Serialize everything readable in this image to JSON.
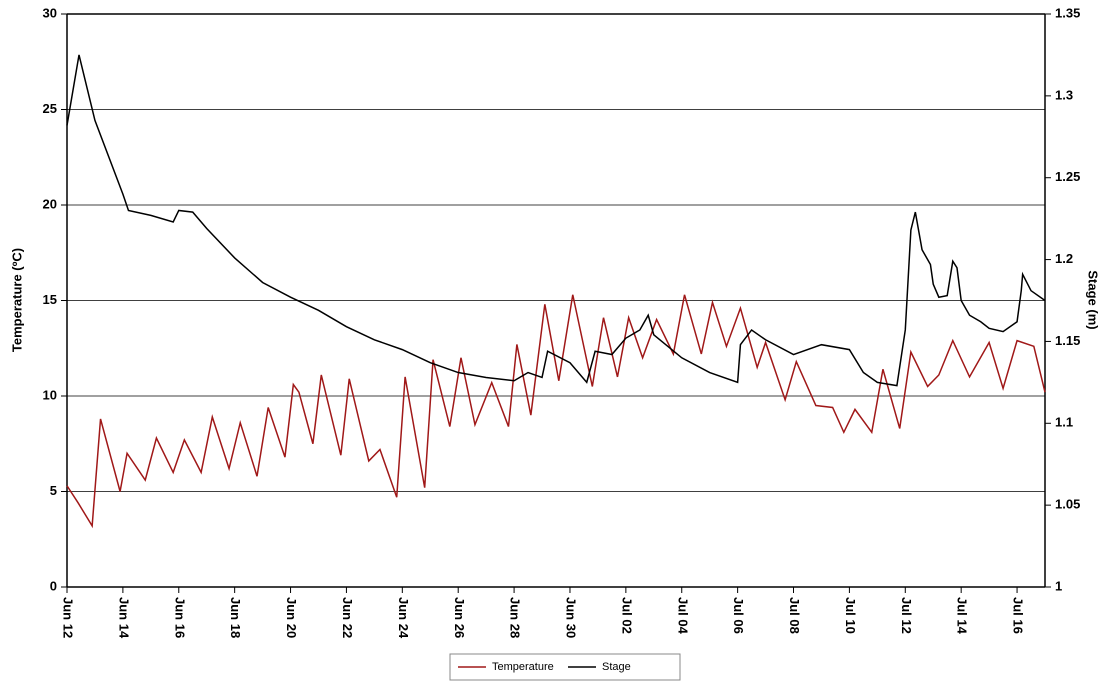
{
  "chart_data": {
    "type": "line",
    "y_label": "Temperature (ºC)",
    "y2_label": "Stage (m)",
    "xlim": [
      0,
      35
    ],
    "xticks": [
      {
        "value": 0,
        "label": "Jun 12"
      },
      {
        "value": 2,
        "label": "Jun 14"
      },
      {
        "value": 4,
        "label": "Jun 16"
      },
      {
        "value": 6,
        "label": "Jun 18"
      },
      {
        "value": 8,
        "label": "Jun 20"
      },
      {
        "value": 10,
        "label": "Jun 22"
      },
      {
        "value": 12,
        "label": "Jun 24"
      },
      {
        "value": 14,
        "label": "Jun 26"
      },
      {
        "value": 16,
        "label": "Jun 28"
      },
      {
        "value": 18,
        "label": "Jun 30"
      },
      {
        "value": 20,
        "label": "Jul 02"
      },
      {
        "value": 22,
        "label": "Jul 04"
      },
      {
        "value": 24,
        "label": "Jul 06"
      },
      {
        "value": 26,
        "label": "Jul 08"
      },
      {
        "value": 28,
        "label": "Jul 10"
      },
      {
        "value": 30,
        "label": "Jul 12"
      },
      {
        "value": 32,
        "label": "Jul 14"
      },
      {
        "value": 34,
        "label": "Jul 16"
      }
    ],
    "ylim": [
      0,
      30
    ],
    "yticks": [
      0,
      5,
      10,
      15,
      20,
      25,
      30
    ],
    "y2lim": [
      1,
      1.35
    ],
    "y2ticks": [
      1,
      1.05,
      1.1,
      1.15,
      1.2,
      1.25,
      1.3,
      1.35
    ],
    "grid": true,
    "legend": "bottom",
    "series": [
      {
        "name": "Temperature",
        "color": "#a01818",
        "x": [
          0,
          0.4,
          0.9,
          1.2,
          1.9,
          2.15,
          2.8,
          3.2,
          3.8,
          4.2,
          4.8,
          5.2,
          5.8,
          6.2,
          6.8,
          7.2,
          7.8,
          8.1,
          8.3,
          8.8,
          9.1,
          9.8,
          10.1,
          10.8,
          11.2,
          11.8,
          12.1,
          12.8,
          13.1,
          13.7,
          14.1,
          14.6,
          15.2,
          15.8,
          16.1,
          16.6,
          17.1,
          17.6,
          18.1,
          18.8,
          19.2,
          19.7,
          20.1,
          20.6,
          21.1,
          21.7,
          22.1,
          22.7,
          23.1,
          23.6,
          24.1,
          24.7,
          25.0,
          25.7,
          26.1,
          26.8,
          27.4,
          27.8,
          28.2,
          28.8,
          29.2,
          29.8,
          30.2,
          30.8,
          31.2,
          31.7,
          32.3,
          33.0,
          33.5,
          34.0,
          34.6,
          35.0
        ],
        "values": [
          5.3,
          4.4,
          3.2,
          8.8,
          5.0,
          7.0,
          5.6,
          7.8,
          6.0,
          7.7,
          6.0,
          8.9,
          6.2,
          8.6,
          5.8,
          9.4,
          6.8,
          10.6,
          10.2,
          7.5,
          11.1,
          6.9,
          10.9,
          6.6,
          7.2,
          4.7,
          11.0,
          5.2,
          11.9,
          8.4,
          12.0,
          8.5,
          10.7,
          8.4,
          12.7,
          9.0,
          14.8,
          10.8,
          15.3,
          10.5,
          14.1,
          11.0,
          14.1,
          12.0,
          14.0,
          12.2,
          15.3,
          12.2,
          14.9,
          12.6,
          14.6,
          11.5,
          12.8,
          9.8,
          11.8,
          9.5,
          9.4,
          8.1,
          9.3,
          8.1,
          11.4,
          8.3,
          12.3,
          10.5,
          11.1,
          12.9,
          11.0,
          12.8,
          10.4,
          12.9,
          12.6,
          10.2
        ]
      },
      {
        "name": "Stage",
        "color": "#000000",
        "axis": "y2",
        "x": [
          0,
          0.43,
          1,
          2,
          2.2,
          3,
          3.8,
          4,
          4.5,
          5,
          6,
          7,
          8,
          9,
          10,
          11,
          12,
          13,
          14,
          15,
          16,
          16.5,
          17,
          17.2,
          18,
          18.6,
          18.9,
          19.5,
          20,
          20.5,
          20.8,
          21,
          22,
          23,
          24,
          24.1,
          24.5,
          25,
          26,
          27,
          28,
          28.5,
          29,
          29.7,
          30.0,
          30.2,
          30.36,
          30.6,
          30.9,
          31.0,
          31.2,
          31.5,
          31.7,
          31.85,
          32.0,
          32.3,
          32.7,
          33.0,
          33.5,
          34.0,
          34.15,
          34.2,
          34.5,
          35
        ],
        "values": [
          1.282,
          1.325,
          1.285,
          1.24,
          1.23,
          1.227,
          1.223,
          1.23,
          1.229,
          1.219,
          1.201,
          1.186,
          1.177,
          1.169,
          1.159,
          1.151,
          1.145,
          1.137,
          1.131,
          1.128,
          1.126,
          1.131,
          1.128,
          1.144,
          1.137,
          1.125,
          1.144,
          1.142,
          1.152,
          1.157,
          1.166,
          1.154,
          1.14,
          1.131,
          1.125,
          1.148,
          1.157,
          1.151,
          1.142,
          1.148,
          1.145,
          1.131,
          1.125,
          1.123,
          1.157,
          1.218,
          1.229,
          1.206,
          1.197,
          1.185,
          1.177,
          1.178,
          1.199,
          1.195,
          1.175,
          1.166,
          1.162,
          1.158,
          1.156,
          1.162,
          1.181,
          1.191,
          1.181,
          1.175
        ]
      }
    ]
  }
}
